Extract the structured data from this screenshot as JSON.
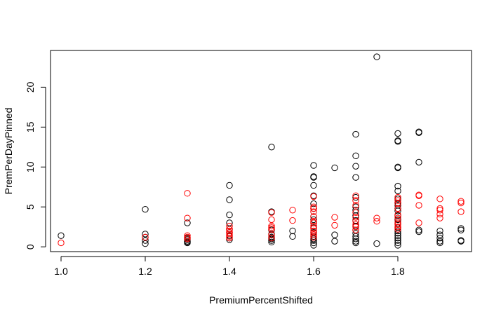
{
  "chart_data": {
    "type": "scatter",
    "xlabel": "PremiumPercentShifted",
    "ylabel": "PremPerDayPinned",
    "xlim": [
      0.975,
      1.975
    ],
    "ylim": [
      -0.6,
      24.6
    ],
    "x_ticks": [
      1.0,
      1.2,
      1.4,
      1.6,
      1.8
    ],
    "x_tick_labels": [
      "1.0",
      "1.2",
      "1.4",
      "1.6",
      "1.8"
    ],
    "y_ticks": [
      0,
      5,
      10,
      15,
      20
    ],
    "y_tick_labels": [
      "0",
      "5",
      "10",
      "15",
      "20"
    ],
    "grid": false,
    "marker": "open-circle",
    "series": [
      {
        "color": "#000000",
        "points": [
          [
            1.0,
            1.4
          ],
          [
            1.2,
            4.7
          ],
          [
            1.2,
            1.6
          ],
          [
            1.2,
            1.2
          ],
          [
            1.2,
            0.8
          ],
          [
            1.2,
            0.4
          ],
          [
            1.3,
            3.0
          ],
          [
            1.3,
            1.1
          ],
          [
            1.3,
            0.9
          ],
          [
            1.3,
            0.7
          ],
          [
            1.3,
            0.6
          ],
          [
            1.3,
            0.5
          ],
          [
            1.4,
            7.7
          ],
          [
            1.4,
            5.9
          ],
          [
            1.4,
            4.0
          ],
          [
            1.4,
            3.0
          ],
          [
            1.4,
            2.2
          ],
          [
            1.4,
            1.8
          ],
          [
            1.4,
            1.4
          ],
          [
            1.4,
            1.1
          ],
          [
            1.4,
            0.9
          ],
          [
            1.5,
            12.5
          ],
          [
            1.5,
            4.4
          ],
          [
            1.5,
            2.1
          ],
          [
            1.5,
            1.6
          ],
          [
            1.5,
            1.2
          ],
          [
            1.5,
            1.0
          ],
          [
            1.5,
            0.8
          ],
          [
            1.5,
            0.6
          ],
          [
            1.55,
            2.0
          ],
          [
            1.55,
            1.3
          ],
          [
            1.6,
            10.2
          ],
          [
            1.6,
            8.8
          ],
          [
            1.6,
            8.7
          ],
          [
            1.6,
            7.7
          ],
          [
            1.6,
            6.4
          ],
          [
            1.6,
            5.4
          ],
          [
            1.6,
            4.8
          ],
          [
            1.6,
            3.8
          ],
          [
            1.6,
            3.4
          ],
          [
            1.6,
            3.0
          ],
          [
            1.6,
            2.4
          ],
          [
            1.6,
            1.8
          ],
          [
            1.6,
            1.3
          ],
          [
            1.6,
            1.0
          ],
          [
            1.6,
            0.8
          ],
          [
            1.6,
            0.5
          ],
          [
            1.6,
            0.2
          ],
          [
            1.65,
            9.9
          ],
          [
            1.65,
            1.5
          ],
          [
            1.65,
            0.7
          ],
          [
            1.7,
            14.1
          ],
          [
            1.7,
            11.4
          ],
          [
            1.7,
            10.1
          ],
          [
            1.7,
            8.7
          ],
          [
            1.7,
            6.2
          ],
          [
            1.7,
            5.0
          ],
          [
            1.7,
            4.6
          ],
          [
            1.7,
            3.9
          ],
          [
            1.7,
            3.3
          ],
          [
            1.7,
            2.6
          ],
          [
            1.7,
            2.1
          ],
          [
            1.7,
            1.7
          ],
          [
            1.7,
            1.3
          ],
          [
            1.7,
            1.0
          ],
          [
            1.7,
            0.7
          ],
          [
            1.7,
            0.5
          ],
          [
            1.75,
            23.8
          ],
          [
            1.75,
            0.4
          ],
          [
            1.8,
            14.2
          ],
          [
            1.8,
            13.3
          ],
          [
            1.8,
            13.2
          ],
          [
            1.8,
            10.0
          ],
          [
            1.8,
            9.9
          ],
          [
            1.8,
            7.6
          ],
          [
            1.8,
            7.0
          ],
          [
            1.8,
            6.0
          ],
          [
            1.8,
            5.5
          ],
          [
            1.8,
            5.2
          ],
          [
            1.8,
            4.8
          ],
          [
            1.8,
            4.5
          ],
          [
            1.8,
            3.9
          ],
          [
            1.8,
            3.4
          ],
          [
            1.8,
            2.9
          ],
          [
            1.8,
            2.4
          ],
          [
            1.8,
            2.0
          ],
          [
            1.8,
            1.7
          ],
          [
            1.8,
            1.4
          ],
          [
            1.8,
            1.1
          ],
          [
            1.8,
            0.8
          ],
          [
            1.8,
            0.5
          ],
          [
            1.8,
            0.2
          ],
          [
            1.85,
            14.4
          ],
          [
            1.85,
            14.3
          ],
          [
            1.85,
            10.6
          ],
          [
            1.85,
            2.1
          ],
          [
            1.85,
            1.9
          ],
          [
            1.9,
            2.0
          ],
          [
            1.9,
            1.5
          ],
          [
            1.9,
            1.1
          ],
          [
            1.9,
            0.7
          ],
          [
            1.9,
            0.5
          ],
          [
            1.95,
            2.3
          ],
          [
            1.95,
            2.1
          ],
          [
            1.95,
            0.8
          ],
          [
            1.95,
            0.7
          ]
        ]
      },
      {
        "color": "#ff0000",
        "points": [
          [
            1.0,
            0.5
          ],
          [
            1.2,
            1.2
          ],
          [
            1.3,
            6.7
          ],
          [
            1.3,
            3.6
          ],
          [
            1.3,
            1.4
          ],
          [
            1.3,
            1.2
          ],
          [
            1.3,
            1.0
          ],
          [
            1.4,
            2.6
          ],
          [
            1.4,
            2.2
          ],
          [
            1.4,
            2.0
          ],
          [
            1.4,
            1.8
          ],
          [
            1.4,
            1.6
          ],
          [
            1.4,
            1.3
          ],
          [
            1.4,
            1.1
          ],
          [
            1.5,
            4.3
          ],
          [
            1.5,
            3.4
          ],
          [
            1.5,
            2.6
          ],
          [
            1.5,
            2.4
          ],
          [
            1.5,
            2.2
          ],
          [
            1.5,
            1.5
          ],
          [
            1.5,
            1.1
          ],
          [
            1.55,
            4.6
          ],
          [
            1.55,
            3.3
          ],
          [
            1.6,
            6.3
          ],
          [
            1.6,
            5.0
          ],
          [
            1.6,
            4.8
          ],
          [
            1.6,
            4.4
          ],
          [
            1.6,
            3.8
          ],
          [
            1.6,
            3.2
          ],
          [
            1.6,
            3.0
          ],
          [
            1.6,
            2.6
          ],
          [
            1.6,
            2.3
          ],
          [
            1.6,
            2.0
          ],
          [
            1.6,
            1.7
          ],
          [
            1.6,
            1.5
          ],
          [
            1.6,
            1.2
          ],
          [
            1.65,
            3.7
          ],
          [
            1.65,
            2.7
          ],
          [
            1.7,
            6.4
          ],
          [
            1.7,
            5.8
          ],
          [
            1.7,
            5.2
          ],
          [
            1.7,
            4.3
          ],
          [
            1.7,
            3.7
          ],
          [
            1.7,
            3.2
          ],
          [
            1.7,
            2.8
          ],
          [
            1.7,
            2.5
          ],
          [
            1.7,
            2.1
          ],
          [
            1.75,
            3.6
          ],
          [
            1.75,
            3.2
          ],
          [
            1.8,
            6.2
          ],
          [
            1.8,
            5.8
          ],
          [
            1.8,
            5.4
          ],
          [
            1.8,
            4.8
          ],
          [
            1.8,
            4.0
          ],
          [
            1.8,
            3.6
          ],
          [
            1.8,
            3.1
          ],
          [
            1.8,
            2.8
          ],
          [
            1.8,
            2.5
          ],
          [
            1.8,
            2.2
          ],
          [
            1.85,
            6.5
          ],
          [
            1.85,
            6.4
          ],
          [
            1.85,
            5.2
          ],
          [
            1.85,
            3.0
          ],
          [
            1.9,
            6.0
          ],
          [
            1.9,
            4.8
          ],
          [
            1.9,
            4.6
          ],
          [
            1.9,
            4.1
          ],
          [
            1.9,
            3.6
          ],
          [
            1.95,
            5.7
          ],
          [
            1.95,
            5.5
          ],
          [
            1.95,
            4.4
          ]
        ]
      }
    ]
  }
}
